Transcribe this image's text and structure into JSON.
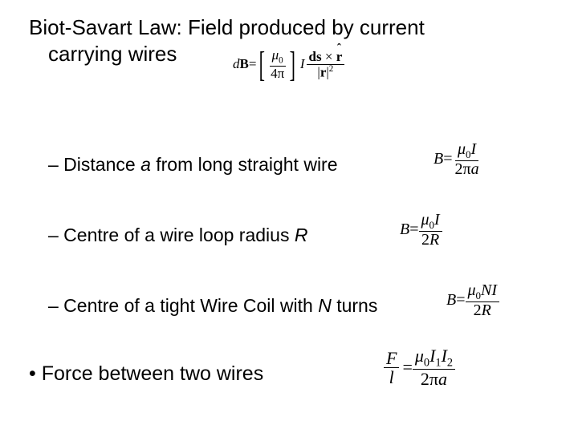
{
  "title": {
    "line1": "Biot-Savart Law: Field produced by current",
    "line2": "carrying wires"
  },
  "biot": {
    "dB_label": "d",
    "B_sym": "B",
    "eq_sign": " = ",
    "mu0_top": "μ",
    "mu0_sub": "0",
    "fourpi": "4π",
    "I_sym": "I",
    "ds": "ds",
    "cross": " × ",
    "rhat": "r",
    "rmag": "r",
    "sq": "2"
  },
  "rows": {
    "r1_dash": "– Distance ",
    "r1_a": "a",
    "r1_rest": " from long straight wire",
    "r2_dash": "– Centre of a wire loop radius ",
    "r2_R": "R",
    "r3_dash": "– Centre of a tight Wire Coil with ",
    "r3_N": "N",
    "r3_rest": " turns"
  },
  "eq1": {
    "B": "B",
    "eq": " = ",
    "num_mu": "μ",
    "num_sub": "0",
    "num_I": "I",
    "den": "2π",
    "den_a": "a"
  },
  "eq2": {
    "B": "B",
    "eq": " = ",
    "num_mu": "μ",
    "num_sub": "0",
    "num_I": "I",
    "den_2": "2",
    "den_R": "R"
  },
  "eq3": {
    "B": "B",
    "eq": " = ",
    "num_mu": "μ",
    "num_sub": "0",
    "num_N": "N",
    "num_I": "I",
    "den_2": "2",
    "den_R": "R"
  },
  "force": {
    "bullet": "•  Force between two wires"
  },
  "eq4": {
    "F": "F",
    "l": "l",
    "eq": " = ",
    "mu": "μ",
    "mu_sub": "0",
    "I1": "I",
    "I1_sub": "1",
    "I2": "I",
    "I2_sub": "2",
    "den": "2π",
    "den_a": "a"
  }
}
